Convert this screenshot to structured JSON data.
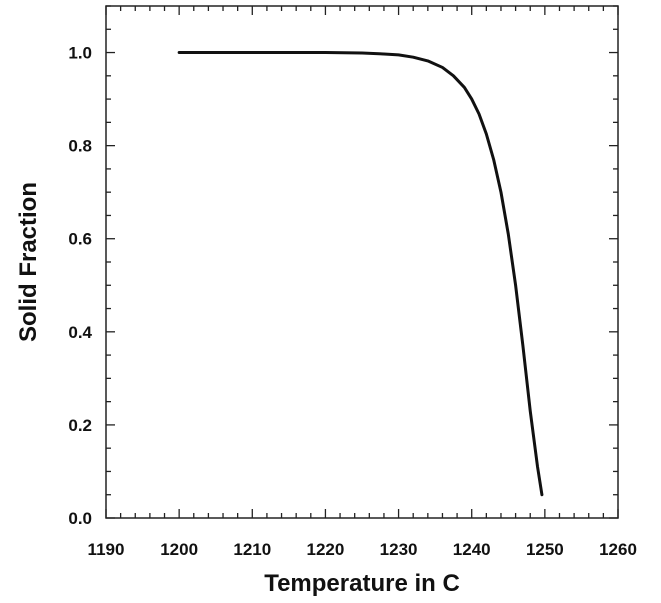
{
  "chart_data": {
    "type": "line",
    "xlabel": "Temperature in C",
    "ylabel": "Solid Fraction",
    "xlim": [
      1190,
      1260
    ],
    "ylim": [
      0.0,
      1.1
    ],
    "x_ticks": [
      1190,
      1200,
      1210,
      1220,
      1230,
      1240,
      1250,
      1260
    ],
    "y_ticks": [
      0.0,
      0.2,
      0.4,
      0.6,
      0.8,
      1.0
    ],
    "x_tick_labels": [
      "1190",
      "1200",
      "1210",
      "1220",
      "1230",
      "1240",
      "1250",
      "1260"
    ],
    "y_tick_labels": [
      "0.0",
      "0.2",
      "0.4",
      "0.6",
      "0.8",
      "1.0"
    ],
    "grid": false,
    "series": [
      {
        "color": "#111111",
        "x": [
          1200,
          1210,
          1220,
          1225,
          1228,
          1230,
          1232,
          1234,
          1236,
          1237.5,
          1239,
          1240,
          1241,
          1242,
          1243,
          1244,
          1245,
          1246,
          1247,
          1248,
          1249,
          1249.6
        ],
        "y": [
          1.0,
          1.0,
          1.0,
          0.999,
          0.997,
          0.995,
          0.99,
          0.982,
          0.968,
          0.95,
          0.925,
          0.9,
          0.868,
          0.825,
          0.77,
          0.7,
          0.61,
          0.5,
          0.37,
          0.23,
          0.11,
          0.05
        ]
      }
    ]
  }
}
